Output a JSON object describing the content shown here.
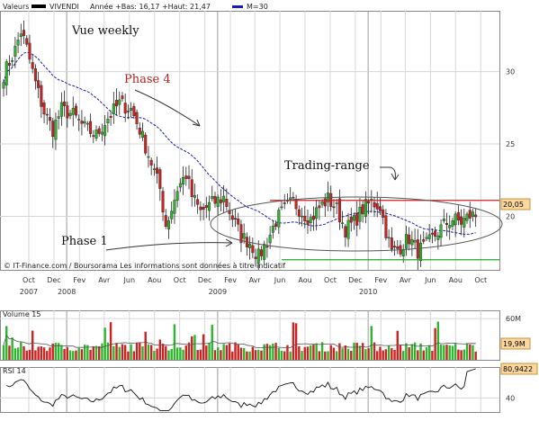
{
  "header": {
    "valeurs_label": "Valeurs",
    "symbol": "VIVENDI",
    "stats": "Année +Bas: 16,17 +Haut: 21,47",
    "ma_legend": "M=30"
  },
  "copyright": "© IT-Finance.com / Boursorama Les informations sont données à titre indicatif",
  "annotations": {
    "vue": "Vue weekly",
    "phase4": "Phase 4",
    "phase1": "Phase 1",
    "trading_range": "Trading-range"
  },
  "x_axis": {
    "months": [
      "Oct",
      "Dec",
      "Fev",
      "Avr",
      "Jun",
      "Aou",
      "Oct",
      "Dec",
      "Fev",
      "Avr",
      "Jun",
      "Aou",
      "Oct",
      "Dec",
      "Fev",
      "Avr",
      "Jun",
      "Aou",
      "Oct"
    ],
    "years": [
      "2007",
      "2008",
      "2009",
      "2010"
    ]
  },
  "colors": {
    "up": "#2db52d",
    "down": "#cc2222",
    "ma": "#1c1cb4",
    "resistance": "#cc2222",
    "support": "#22aa22",
    "rsi_line": "#111111",
    "grid": "#d6d6d6",
    "box_bg": "#fbd7a0"
  },
  "chart_data": [
    {
      "type": "candlestick",
      "title": "",
      "ylim": [
        16.3,
        34.2
      ],
      "yticks": [
        20,
        25,
        30
      ],
      "ytick_labels": [
        "20",
        "25",
        "30"
      ],
      "last_value": "20,05",
      "levels": {
        "resistance": 21.1,
        "support": 17.0
      },
      "ma_name": "M=30",
      "x_start": "2007-08-01",
      "x_end": "2010-10-31",
      "weeks": 170
    },
    {
      "type": "bar",
      "title": "Volume 15",
      "ylim": [
        0,
        72
      ],
      "yticks": [
        60
      ],
      "ytick_labels": [
        "60M"
      ],
      "last_value": "19,9M"
    },
    {
      "type": "line",
      "title": "RSI 14",
      "ylim": [
        20,
        84
      ],
      "yticks": [
        40
      ],
      "ytick_labels": [
        "40"
      ],
      "last_value": "80,9422"
    }
  ]
}
